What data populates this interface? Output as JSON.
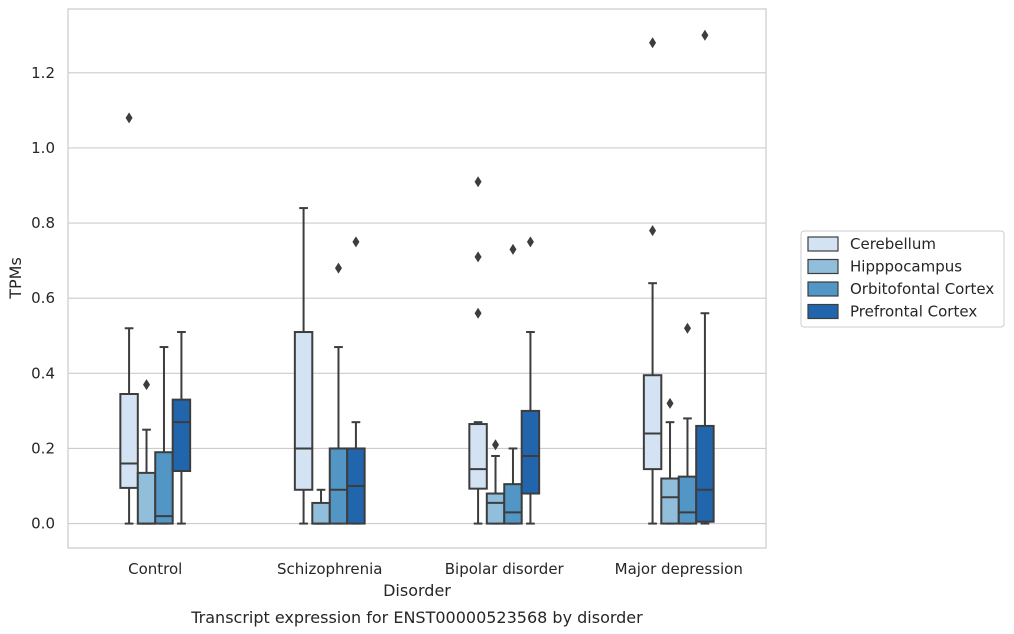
{
  "chart_data": {
    "type": "box",
    "xlabel": "Disorder",
    "ylabel": "TPMs",
    "caption": "Transcript expression for ENST00000523568 by disorder",
    "ylim": [
      -0.065,
      1.37
    ],
    "yticks": [
      "0.0",
      "0.2",
      "0.4",
      "0.6",
      "0.8",
      "1.0",
      "1.2"
    ],
    "grid": "horizontal",
    "legend_position": "right",
    "categories": [
      "Control",
      "Schizophrenia",
      "Bipolar disorder",
      "Major depression"
    ],
    "series": [
      {
        "name": "Cerebellum",
        "color": "#d4e3f3",
        "boxes": [
          {
            "whisker_low": 0.0,
            "q1": 0.095,
            "median": 0.16,
            "q3": 0.345,
            "whisker_high": 0.52,
            "outliers": [
              1.08
            ]
          },
          {
            "whisker_low": 0.0,
            "q1": 0.09,
            "median": 0.2,
            "q3": 0.51,
            "whisker_high": 0.84,
            "outliers": []
          },
          {
            "whisker_low": 0.0,
            "q1": 0.093,
            "median": 0.145,
            "q3": 0.265,
            "whisker_high": 0.27,
            "outliers": [
              0.56,
              0.71,
              0.91
            ]
          },
          {
            "whisker_low": 0.0,
            "q1": 0.145,
            "median": 0.24,
            "q3": 0.395,
            "whisker_high": 0.64,
            "outliers": [
              0.78,
              1.28
            ]
          }
        ]
      },
      {
        "name": "Hipppocampus",
        "color": "#91bfdb",
        "boxes": [
          {
            "whisker_low": 0.0,
            "q1": 0.0,
            "median": 0.0,
            "q3": 0.135,
            "whisker_high": 0.25,
            "outliers": [
              0.37
            ]
          },
          {
            "whisker_low": 0.0,
            "q1": 0.0,
            "median": 0.0,
            "q3": 0.055,
            "whisker_high": 0.09,
            "outliers": []
          },
          {
            "whisker_low": 0.0,
            "q1": 0.0,
            "median": 0.055,
            "q3": 0.08,
            "whisker_high": 0.18,
            "outliers": [
              0.21
            ]
          },
          {
            "whisker_low": 0.0,
            "q1": 0.0,
            "median": 0.07,
            "q3": 0.12,
            "whisker_high": 0.27,
            "outliers": [
              0.32
            ]
          }
        ]
      },
      {
        "name": "Orbitofontal Cortex",
        "color": "#5296c6",
        "boxes": [
          {
            "whisker_low": 0.0,
            "q1": 0.0,
            "median": 0.02,
            "q3": 0.19,
            "whisker_high": 0.47,
            "outliers": []
          },
          {
            "whisker_low": 0.0,
            "q1": 0.0,
            "median": 0.09,
            "q3": 0.2,
            "whisker_high": 0.47,
            "outliers": [
              0.68
            ]
          },
          {
            "whisker_low": 0.0,
            "q1": 0.0,
            "median": 0.03,
            "q3": 0.105,
            "whisker_high": 0.2,
            "outliers": [
              0.73
            ]
          },
          {
            "whisker_low": 0.0,
            "q1": 0.0,
            "median": 0.03,
            "q3": 0.125,
            "whisker_high": 0.28,
            "outliers": [
              0.52
            ]
          }
        ]
      },
      {
        "name": "Prefrontal Cortex",
        "color": "#2166ac",
        "boxes": [
          {
            "whisker_low": 0.0,
            "q1": 0.14,
            "median": 0.27,
            "q3": 0.33,
            "whisker_high": 0.51,
            "outliers": []
          },
          {
            "whisker_low": 0.0,
            "q1": 0.0,
            "median": 0.1,
            "q3": 0.2,
            "whisker_high": 0.27,
            "outliers": [
              0.75
            ]
          },
          {
            "whisker_low": 0.0,
            "q1": 0.08,
            "median": 0.18,
            "q3": 0.3,
            "whisker_high": 0.51,
            "outliers": [
              0.75
            ]
          },
          {
            "whisker_low": 0.0,
            "q1": 0.005,
            "median": 0.09,
            "q3": 0.26,
            "whisker_high": 0.56,
            "outliers": [
              1.3
            ]
          }
        ]
      }
    ]
  }
}
